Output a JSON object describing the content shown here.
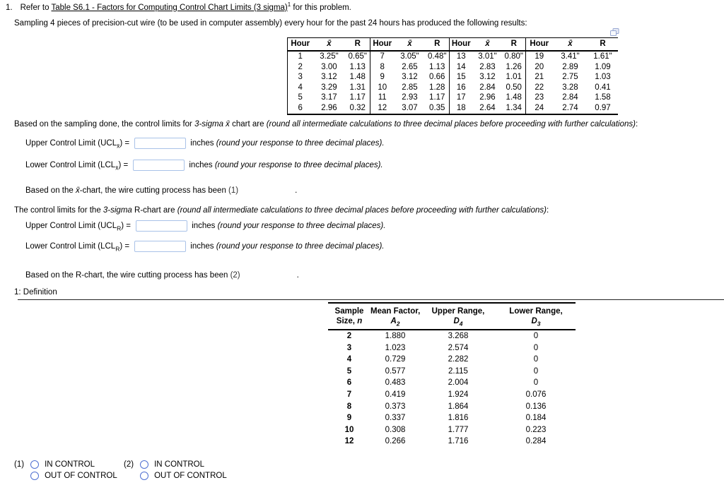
{
  "colors": {
    "input_border": "#a9c2e8",
    "radio_ring": "#4f6fd2",
    "table_rule": "#000000"
  },
  "header": {
    "number": "1.",
    "refer_pre": "Refer to ",
    "link_text": "Table S6.1 - Factors for Computing Control Chart Limits (3 sigma)",
    "footnote_sup": "1",
    "refer_post": " for this problem.",
    "intro": "Sampling 4 pieces of precision-cut wire (to be used in computer assembly) every hour for the past 24 hours has produced the following results:"
  },
  "samples_table": {
    "headers": [
      "Hour",
      "x̄",
      "R"
    ],
    "rows": [
      [
        "1",
        "3.25\"",
        "0.65\"",
        "7",
        "3.05\"",
        "0.48\"",
        "13",
        "3.01\"",
        "0.80\"",
        "19",
        "3.41\"",
        "1.61\""
      ],
      [
        "2",
        "3.00",
        "1.13",
        "8",
        "2.65",
        "1.13",
        "14",
        "2.83",
        "1.26",
        "20",
        "2.89",
        "1.09"
      ],
      [
        "3",
        "3.12",
        "1.48",
        "9",
        "3.12",
        "0.66",
        "15",
        "3.12",
        "1.01",
        "21",
        "2.75",
        "1.03"
      ],
      [
        "4",
        "3.29",
        "1.31",
        "10",
        "2.85",
        "1.28",
        "16",
        "2.84",
        "0.50",
        "22",
        "3.28",
        "0.41"
      ],
      [
        "5",
        "3.17",
        "1.17",
        "11",
        "2.93",
        "1.17",
        "17",
        "2.96",
        "1.48",
        "23",
        "2.84",
        "1.58"
      ],
      [
        "6",
        "2.96",
        "0.32",
        "12",
        "3.07",
        "0.35",
        "18",
        "2.64",
        "1.34",
        "24",
        "2.74",
        "0.97"
      ]
    ],
    "copy_icon": "copy-icon"
  },
  "xbar_section": {
    "intro_pre": "Based on the sampling done, the control limits for ",
    "intro_em": "3-sigma x̄",
    "intro_mid": " chart are ",
    "intro_note": "(round all intermediate calculations to three decimal places before proceeding with further calculations)",
    "intro_colon": ":",
    "ucl": {
      "label_pre": "Upper Control Limit (UCL",
      "label_sub": "x̄",
      "label_post": ") = ",
      "value": "",
      "unit": "inches",
      "note": "(round your response to three decimal places)."
    },
    "lcl": {
      "label_pre": "Lower Control Limit (LCL",
      "label_sub": "x̄",
      "label_post": ") = ",
      "value": "",
      "unit": "inches",
      "note": "(round your response to three decimal places)."
    },
    "conclusion_pre": "Based on the ",
    "conclusion_em": "x̄",
    "conclusion_post": "-chart, the wire cutting process has been ",
    "marker": "(1)",
    "period": "."
  },
  "r_section": {
    "intro_pre": "The control limits for the ",
    "intro_em": "3-sigma",
    "intro_mid": " R-chart are ",
    "intro_note": "(round all intermediate calculations to three decimal places before proceeding with further calculations)",
    "intro_colon": ":",
    "ucl": {
      "label_pre": "Upper Control Limit (UCL",
      "label_sub": "R",
      "label_post": ") = ",
      "value": "",
      "unit": "inches",
      "note": "(round your response to three decimal places)."
    },
    "lcl": {
      "label_pre": "Lower Control Limit (LCL",
      "label_sub": "R",
      "label_post": ") = ",
      "value": "",
      "unit": "inches",
      "note": "(round your response to three decimal places)."
    },
    "conclusion_pre": "Based on the R-chart, the wire cutting process has been ",
    "marker": "(2)",
    "period": "."
  },
  "definition": {
    "label": "1: Definition"
  },
  "factors_table": {
    "headers": [
      {
        "line1": "Sample",
        "line2_pre": "Size, ",
        "sym": "n",
        "sub": ""
      },
      {
        "line1": "Mean Factor,",
        "line2_pre": "",
        "sym": "A",
        "sub": "2"
      },
      {
        "line1": "Upper Range,",
        "line2_pre": "",
        "sym": "D",
        "sub": "4"
      },
      {
        "line1": "Lower Range,",
        "line2_pre": "",
        "sym": "D",
        "sub": "3"
      }
    ],
    "rows": [
      [
        "2",
        "1.880",
        "3.268",
        "0"
      ],
      [
        "3",
        "1.023",
        "2.574",
        "0"
      ],
      [
        "4",
        "0.729",
        "2.282",
        "0"
      ],
      [
        "5",
        "0.577",
        "2.115",
        "0"
      ],
      [
        "6",
        "0.483",
        "2.004",
        "0"
      ],
      [
        "7",
        "0.419",
        "1.924",
        "0.076"
      ],
      [
        "8",
        "0.373",
        "1.864",
        "0.136"
      ],
      [
        "9",
        "0.337",
        "1.816",
        "0.184"
      ],
      [
        "10",
        "0.308",
        "1.777",
        "0.223"
      ],
      [
        "12",
        "0.266",
        "1.716",
        "0.284"
      ]
    ]
  },
  "choices": {
    "group1": {
      "marker": "(1)",
      "options": [
        "IN CONTROL",
        "OUT OF CONTROL"
      ]
    },
    "group2": {
      "marker": "(2)",
      "options": [
        "IN CONTROL",
        "OUT OF CONTROL"
      ]
    }
  }
}
